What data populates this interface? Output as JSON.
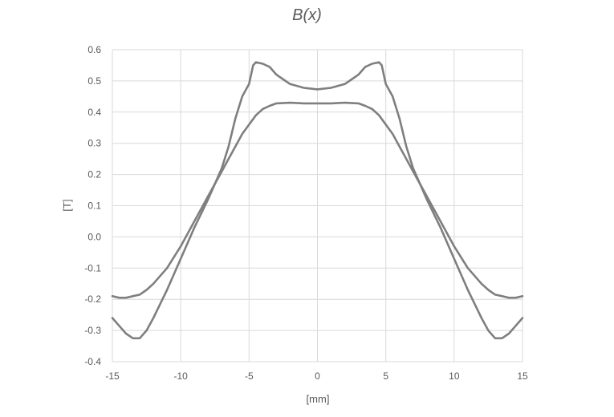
{
  "chart_data": {
    "type": "line",
    "title": "B(x)",
    "xlabel": "[mm]",
    "ylabel": "[T]",
    "xlim": [
      -15,
      15
    ],
    "ylim": [
      -0.4,
      0.6
    ],
    "x_ticks": [
      "-15",
      "-10",
      "-5",
      "0",
      "5",
      "10",
      "15"
    ],
    "y_ticks": [
      "0.6",
      "0.5",
      "0.4",
      "0.3",
      "0.2",
      "0.1",
      "0.0",
      "-0.1",
      "-0.2",
      "-0.3",
      "-0.4"
    ],
    "grid": true,
    "legend": "none",
    "line_color": "#7f7f7f",
    "grid_color": "#d9d9d9",
    "series": [
      {
        "x": [
          -15,
          -14.5,
          -14,
          -13.5,
          -13,
          -12.5,
          -12,
          -11,
          -10,
          -9,
          -8,
          -7,
          -6.5,
          -6,
          -5.5,
          -5,
          -4.7,
          -4.5,
          -4,
          -3.5,
          -3,
          -2.5,
          -2,
          -1,
          0,
          1,
          2,
          2.5,
          3,
          3.5,
          4,
          4.5,
          4.7,
          5,
          5.5,
          6,
          6.5,
          7,
          8,
          9,
          10,
          11,
          12,
          12.5,
          13,
          13.5,
          14,
          14.5,
          15
        ],
        "y": [
          -0.26,
          -0.285,
          -0.31,
          -0.325,
          -0.325,
          -0.3,
          -0.26,
          -0.17,
          -0.07,
          0.03,
          0.12,
          0.22,
          0.29,
          0.38,
          0.45,
          0.49,
          0.55,
          0.56,
          0.555,
          0.545,
          0.52,
          0.505,
          0.49,
          0.478,
          0.473,
          0.478,
          0.49,
          0.505,
          0.52,
          0.545,
          0.555,
          0.56,
          0.55,
          0.49,
          0.45,
          0.38,
          0.29,
          0.22,
          0.12,
          0.03,
          -0.07,
          -0.17,
          -0.26,
          -0.3,
          -0.325,
          -0.325,
          -0.31,
          -0.285,
          -0.26
        ]
      },
      {
        "x": [
          -15,
          -14.5,
          -14,
          -13.5,
          -13,
          -12.5,
          -12,
          -11,
          -10,
          -9,
          -8,
          -7,
          -6.5,
          -6,
          -5.5,
          -5,
          -4.5,
          -4,
          -3.5,
          -3,
          -2,
          -1,
          0,
          1,
          2,
          3,
          3.5,
          4,
          4.5,
          5,
          5.5,
          6,
          6.5,
          7,
          8,
          9,
          10,
          11,
          12,
          12.5,
          13,
          13.5,
          14,
          14.5,
          15
        ],
        "y": [
          -0.19,
          -0.195,
          -0.195,
          -0.19,
          -0.185,
          -0.17,
          -0.15,
          -0.1,
          -0.03,
          0.05,
          0.13,
          0.21,
          0.25,
          0.29,
          0.33,
          0.36,
          0.39,
          0.41,
          0.42,
          0.428,
          0.43,
          0.428,
          0.428,
          0.428,
          0.43,
          0.428,
          0.42,
          0.41,
          0.39,
          0.36,
          0.33,
          0.29,
          0.25,
          0.21,
          0.13,
          0.05,
          -0.03,
          -0.1,
          -0.15,
          -0.17,
          -0.185,
          -0.19,
          -0.195,
          -0.195,
          -0.19
        ]
      }
    ]
  }
}
